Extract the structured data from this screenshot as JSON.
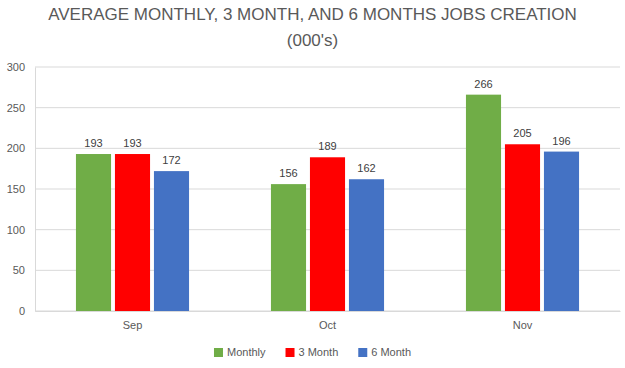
{
  "chart_data": {
    "type": "bar",
    "title": "AVERAGE MONTHLY, 3 MONTH, AND 6 MONTHS JOBS CREATION",
    "subtitle": "(000's)",
    "categories": [
      "Sep",
      "Oct",
      "Nov"
    ],
    "series": [
      {
        "name": "Monthly",
        "color": "#70ad47",
        "values": [
          193,
          156,
          266
        ]
      },
      {
        "name": "3 Month",
        "color": "#ff0000",
        "values": [
          193,
          189,
          205
        ]
      },
      {
        "name": "6 Month",
        "color": "#4472c4",
        "values": [
          172,
          162,
          196
        ]
      }
    ],
    "ylim": [
      0,
      300
    ],
    "yticks": [
      0,
      50,
      100,
      150,
      200,
      250,
      300
    ],
    "grid": true,
    "data_labels": true,
    "legend": "bottom"
  }
}
